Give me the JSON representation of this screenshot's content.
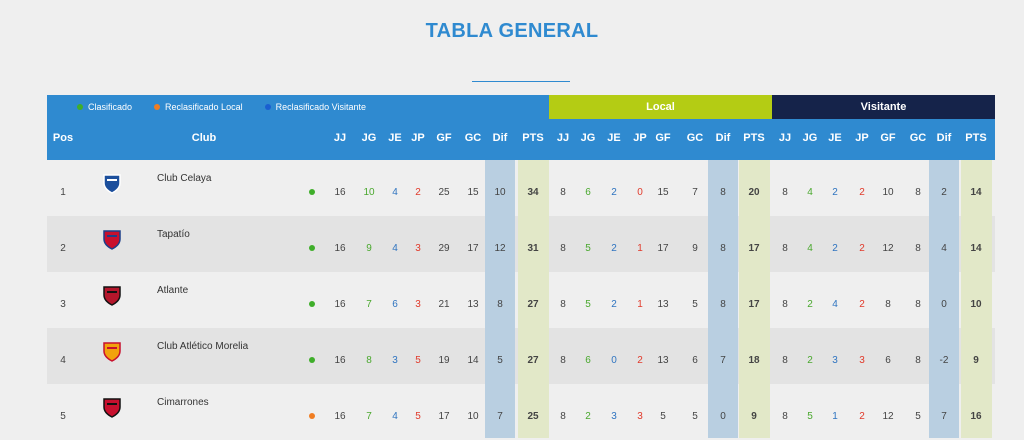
{
  "title": "TABLA GENERAL",
  "legend": [
    {
      "label": "Clasificado",
      "color": "#3fae2a"
    },
    {
      "label": "Reclasificado Local",
      "color": "#f07d22"
    },
    {
      "label": "Reclasificado Visitante",
      "color": "#1a5fd0"
    }
  ],
  "bands": {
    "local": "Local",
    "visit": "Visitante"
  },
  "headers": {
    "pos": "Pos",
    "club": "Club",
    "stats": [
      "JJ",
      "JG",
      "JE",
      "JP",
      "GF",
      "GC",
      "Dif",
      "PTS"
    ]
  },
  "rows": [
    {
      "pos": "1",
      "club": "Club Celaya",
      "status_color": "#3fae2a",
      "total": [
        "16",
        "10",
        "4",
        "2",
        "25",
        "15",
        "10",
        "34"
      ],
      "local": [
        "8",
        "6",
        "2",
        "0",
        "15",
        "7",
        "8",
        "20"
      ],
      "visit": [
        "8",
        "4",
        "2",
        "2",
        "10",
        "8",
        "2",
        "14"
      ]
    },
    {
      "pos": "2",
      "club": "Tapatío",
      "status_color": "#3fae2a",
      "total": [
        "16",
        "9",
        "4",
        "3",
        "29",
        "17",
        "12",
        "31"
      ],
      "local": [
        "8",
        "5",
        "2",
        "1",
        "17",
        "9",
        "8",
        "17"
      ],
      "visit": [
        "8",
        "4",
        "2",
        "2",
        "12",
        "8",
        "4",
        "14"
      ]
    },
    {
      "pos": "3",
      "club": "Atlante",
      "status_color": "#3fae2a",
      "total": [
        "16",
        "7",
        "6",
        "3",
        "21",
        "13",
        "8",
        "27"
      ],
      "local": [
        "8",
        "5",
        "2",
        "1",
        "13",
        "5",
        "8",
        "17"
      ],
      "visit": [
        "8",
        "2",
        "4",
        "2",
        "8",
        "8",
        "0",
        "10"
      ]
    },
    {
      "pos": "4",
      "club": "Club Atlético Morelia",
      "status_color": "#3fae2a",
      "total": [
        "16",
        "8",
        "3",
        "5",
        "19",
        "14",
        "5",
        "27"
      ],
      "local": [
        "8",
        "6",
        "0",
        "2",
        "13",
        "6",
        "7",
        "18"
      ],
      "visit": [
        "8",
        "2",
        "3",
        "3",
        "6",
        "8",
        "-2",
        "9"
      ]
    },
    {
      "pos": "5",
      "club": "Cimarrones",
      "status_color": "#f07d22",
      "total": [
        "16",
        "7",
        "4",
        "5",
        "17",
        "10",
        "7",
        "25"
      ],
      "local": [
        "8",
        "2",
        "3",
        "3",
        "5",
        "5",
        "0",
        "9"
      ],
      "visit": [
        "8",
        "5",
        "1",
        "2",
        "12",
        "5",
        "7",
        "16"
      ]
    }
  ]
}
